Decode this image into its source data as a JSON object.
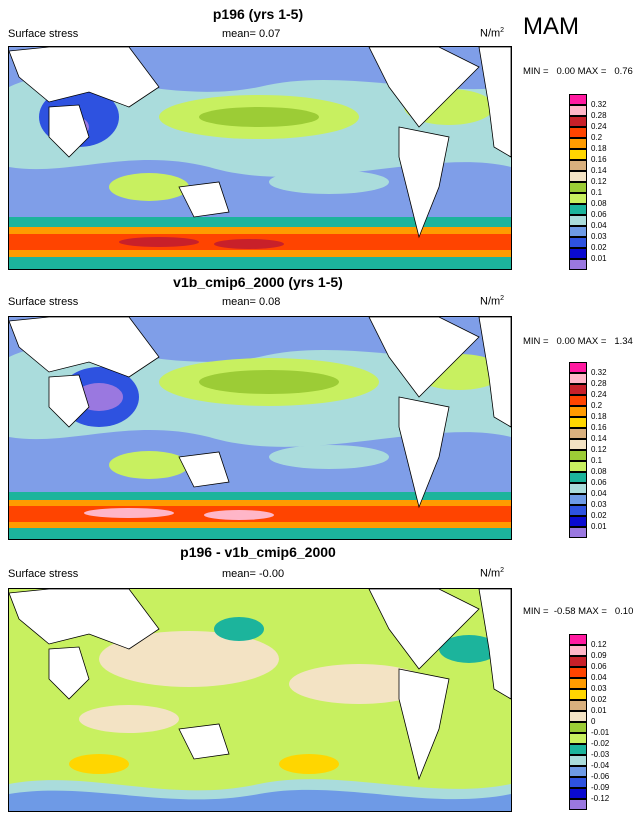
{
  "season": "MAM",
  "panels": [
    {
      "title": "p196 (yrs 1-5)",
      "field_label": "Surface stress",
      "mean_text": "mean=  0.07",
      "units": "N/m",
      "units_exp": "2",
      "minmax_text": "MIN =   0.00 MAX =   0.76",
      "colorbar": {
        "labels": [
          "0.32",
          "0.28",
          "0.24",
          "0.2",
          "0.18",
          "0.16",
          "0.14",
          "0.12",
          "0.1",
          "0.08",
          "0.06",
          "0.04",
          "0.03",
          "0.02",
          "0.01"
        ],
        "colors": [
          "#ff1aa0",
          "#ffb6c8",
          "#c8202a",
          "#ff4400",
          "#ff9b00",
          "#ffd600",
          "#d9b07e",
          "#f3e3c4",
          "#9ccc36",
          "#c8f060",
          "#1cb49c",
          "#aadcdc",
          "#6e9ae6",
          "#2e52e0",
          "#0a0ad0",
          "#9a78e0"
        ]
      }
    },
    {
      "title": "v1b_cmip6_2000 (yrs 1-5)",
      "field_label": "Surface stress",
      "mean_text": "mean=  0.08",
      "units": "N/m",
      "units_exp": "2",
      "minmax_text": "MIN =   0.00 MAX =   1.34",
      "colorbar": {
        "labels": [
          "0.32",
          "0.28",
          "0.24",
          "0.2",
          "0.18",
          "0.16",
          "0.14",
          "0.12",
          "0.1",
          "0.08",
          "0.06",
          "0.04",
          "0.03",
          "0.02",
          "0.01"
        ],
        "colors": [
          "#ff1aa0",
          "#ffb6c8",
          "#c8202a",
          "#ff4400",
          "#ff9b00",
          "#ffd600",
          "#d9b07e",
          "#f3e3c4",
          "#9ccc36",
          "#c8f060",
          "#1cb49c",
          "#aadcdc",
          "#6e9ae6",
          "#2e52e0",
          "#0a0ad0",
          "#9a78e0"
        ]
      }
    },
    {
      "title": "p196 - v1b_cmip6_2000",
      "field_label": "Surface stress",
      "mean_text": "mean=  -0.00",
      "units": "N/m",
      "units_exp": "2",
      "minmax_text": "MIN =  -0.58 MAX =   0.10",
      "colorbar": {
        "labels": [
          "0.12",
          "0.09",
          "0.06",
          "0.04",
          "0.03",
          "0.02",
          "0.01",
          "0",
          "-0.01",
          "-0.02",
          "-0.03",
          "-0.04",
          "-0.06",
          "-0.09",
          "-0.12"
        ],
        "colors": [
          "#ff1aa0",
          "#ffb6c8",
          "#c8202a",
          "#ff4400",
          "#ff9b00",
          "#ffd600",
          "#d9b07e",
          "#f3e3c4",
          "#9ccc36",
          "#c8f060",
          "#1cb49c",
          "#aadcdc",
          "#6e9ae6",
          "#2e52e0",
          "#0a0ad0",
          "#9a78e0"
        ]
      }
    }
  ]
}
